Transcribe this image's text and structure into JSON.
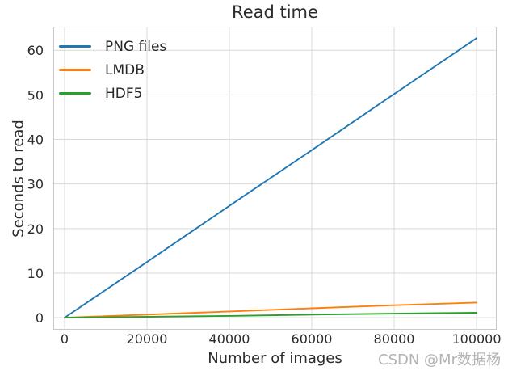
{
  "watermark": "CSDN @Mr数据杨",
  "chart_data": {
    "type": "line",
    "title": "Read time",
    "xlabel": "Number of images",
    "ylabel": "Seconds to read",
    "xlim": [
      -2750,
      104900
    ],
    "ylim": [
      -2.7,
      65.3
    ],
    "x_ticks": [
      0,
      20000,
      40000,
      60000,
      80000,
      100000
    ],
    "y_ticks": [
      0,
      10,
      20,
      30,
      40,
      50,
      60
    ],
    "grid": true,
    "grid_color": "#d9d9d9",
    "spine_color": "#c9c9c9",
    "tick_label_color": "#2b2b2b",
    "legend_position": "upper left",
    "x": [
      0,
      20000,
      40000,
      60000,
      80000,
      100000
    ],
    "series": [
      {
        "name": "PNG files",
        "color": "#1f77b4",
        "values": [
          0,
          12.5,
          25.1,
          37.6,
          50.2,
          62.7
        ]
      },
      {
        "name": "LMDB",
        "color": "#ff7f0e",
        "values": [
          0,
          0.7,
          1.4,
          2.1,
          2.8,
          3.4
        ]
      },
      {
        "name": "HDF5",
        "color": "#2ca02c",
        "values": [
          0,
          0.2,
          0.4,
          0.7,
          0.9,
          1.1
        ]
      }
    ]
  }
}
